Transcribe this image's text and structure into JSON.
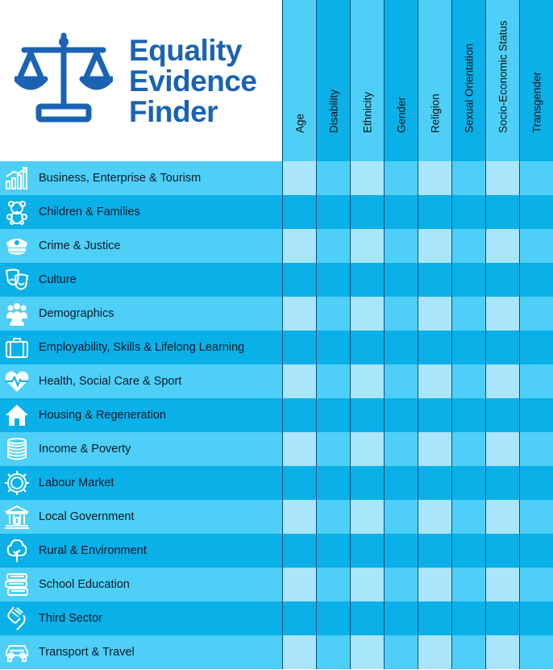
{
  "logo": {
    "lines": [
      "Equality",
      "Evidence",
      "Finder"
    ],
    "icon": "scales-icon",
    "color": "#1a63b4"
  },
  "columns": [
    "Age",
    "Disability",
    "Ethnicity",
    "Gender",
    "Religion",
    "Sexual Orientation",
    "Socio-Economic Status",
    "Transgender"
  ],
  "rows": [
    {
      "label": "Business, Enterprise & Tourism",
      "icon": "chart-growth-icon"
    },
    {
      "label": "Children & Families",
      "icon": "teddy-bear-icon"
    },
    {
      "label": "Crime & Justice",
      "icon": "police-cap-icon"
    },
    {
      "label": "Culture",
      "icon": "theatre-masks-icon"
    },
    {
      "label": "Demographics",
      "icon": "people-group-icon"
    },
    {
      "label": "Employability, Skills & Lifelong Learning",
      "icon": "briefcase-icon"
    },
    {
      "label": "Health, Social Care & Sport",
      "icon": "heartbeat-icon"
    },
    {
      "label": "Housing & Regeneration",
      "icon": "house-icon"
    },
    {
      "label": "Income & Poverty",
      "icon": "coins-icon"
    },
    {
      "label": "Labour Market",
      "icon": "cog-icon"
    },
    {
      "label": "Local Government",
      "icon": "government-building-icon"
    },
    {
      "label": "Rural & Environment",
      "icon": "tree-icon"
    },
    {
      "label": "School Education",
      "icon": "books-icon"
    },
    {
      "label": "Third Sector",
      "icon": "helping-hands-icon"
    },
    {
      "label": "Transport & Travel",
      "icon": "car-icon"
    }
  ],
  "colors": {
    "row_even": "#4dcff7",
    "row_odd": "#0ab0e8",
    "cell_light": "#a9e6fb",
    "cell_mid": "#4dcff7",
    "cell_dark": "#0ab0e8",
    "cell_deep": "#05a6e0"
  }
}
